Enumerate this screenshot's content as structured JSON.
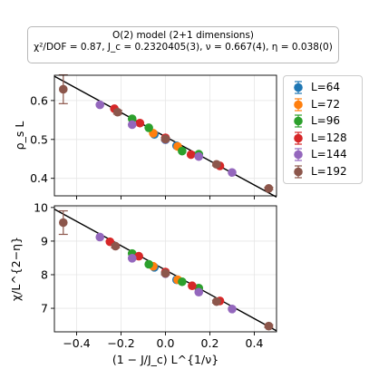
{
  "title": {
    "line1": "O(2) model (2+1 dimensions)",
    "line2": "χ²/DOF = 0.87, J_c = 0.2320405(3), ν = 0.667(4), η = 0.038(0)"
  },
  "legend": {
    "placement": "outside-right",
    "entries": [
      {
        "label": "L=64",
        "color": "#1f77b4"
      },
      {
        "label": "L=72",
        "color": "#ff7f0e"
      },
      {
        "label": "L=96",
        "color": "#2ca02c"
      },
      {
        "label": "L=128",
        "color": "#d62728"
      },
      {
        "label": "L=144",
        "color": "#9467bd"
      },
      {
        "label": "L=192",
        "color": "#8c564b"
      }
    ]
  },
  "chart_data": [
    {
      "type": "scatter",
      "ylabel": "ρ_s L",
      "xlim": [
        -0.5,
        0.5
      ],
      "ylim": [
        0.355,
        0.665
      ],
      "yticks": [
        "0.4",
        "0.5",
        "0.6"
      ],
      "grid": true,
      "fit_line": {
        "x": [
          -0.5,
          0.5
        ],
        "y": [
          0.6623,
          0.3517
        ]
      },
      "series": [
        {
          "name": "L=64",
          "color": "#1f77b4",
          "x": [
            -0.05,
            0.0,
            0.05
          ],
          "y": [
            0.5131,
            0.4993,
            0.4837
          ]
        },
        {
          "name": "L=72",
          "color": "#ff7f0e",
          "x": [
            -0.055,
            0.055
          ],
          "y": [
            0.516,
            0.482
          ]
        },
        {
          "name": "L=96",
          "color": "#2ca02c",
          "x": [
            -0.15,
            -0.075,
            0.075,
            0.15
          ],
          "y": [
            0.553,
            0.53,
            0.47,
            0.462
          ]
        },
        {
          "name": "L=128",
          "color": "#d62728",
          "x": [
            -0.23,
            -0.115,
            0.0,
            0.115,
            0.245
          ],
          "y": [
            0.579,
            0.542,
            0.504,
            0.461,
            0.432
          ]
        },
        {
          "name": "L=144",
          "color": "#9467bd",
          "x": [
            -0.295,
            -0.15,
            0.0,
            0.15,
            0.3
          ],
          "y": [
            0.589,
            0.538,
            0.5,
            0.456,
            0.415
          ]
        },
        {
          "name": "L=192",
          "color": "#8c564b",
          "x": [
            -0.46,
            -0.215,
            0.0,
            0.23,
            0.465
          ],
          "y": [
            0.629,
            0.57,
            0.501,
            0.436,
            0.374
          ],
          "yerr": [
            0.037,
            0.005,
            0.004,
            0.004,
            0.003
          ]
        }
      ]
    },
    {
      "type": "scatter",
      "xlabel": "(1 − J/J_c) L^{1/ν}",
      "ylabel": "χ/L^{2−η}",
      "xlim": [
        -0.5,
        0.5
      ],
      "xticks": [
        "−0.4",
        "−0.2",
        "0.0",
        "0.2",
        "0.4"
      ],
      "ylim": [
        6.3,
        10.05
      ],
      "yticks": [
        "7",
        "8",
        "9",
        "10"
      ],
      "grid": true,
      "fit_line": {
        "x": [
          -0.5,
          0.5
        ],
        "y": [
          9.95,
          6.33
        ]
      },
      "series": [
        {
          "name": "L=64",
          "color": "#1f77b4",
          "x": [
            -0.05,
            0.0,
            0.05
          ],
          "y": [
            8.22,
            8.05,
            7.85
          ]
        },
        {
          "name": "L=72",
          "color": "#ff7f0e",
          "x": [
            -0.055,
            0.055
          ],
          "y": [
            8.25,
            7.85
          ]
        },
        {
          "name": "L=96",
          "color": "#2ca02c",
          "x": [
            -0.15,
            -0.075,
            0.075,
            0.15
          ],
          "y": [
            8.63,
            8.31,
            7.79,
            7.6
          ]
        },
        {
          "name": "L=128",
          "color": "#d62728",
          "x": [
            -0.25,
            -0.12,
            0.0,
            0.12,
            0.245
          ],
          "y": [
            8.98,
            8.55,
            8.08,
            7.67,
            7.22
          ]
        },
        {
          "name": "L=144",
          "color": "#9467bd",
          "x": [
            -0.295,
            -0.15,
            0.0,
            0.15,
            0.3
          ],
          "y": [
            9.12,
            8.49,
            8.03,
            7.48,
            6.98
          ]
        },
        {
          "name": "L=192",
          "color": "#8c564b",
          "x": [
            -0.46,
            -0.225,
            0.0,
            0.23,
            0.465
          ],
          "y": [
            9.55,
            8.85,
            8.04,
            7.2,
            6.47
          ],
          "yerr": [
            0.35,
            0.05,
            0.04,
            0.04,
            0.04
          ]
        }
      ]
    }
  ]
}
